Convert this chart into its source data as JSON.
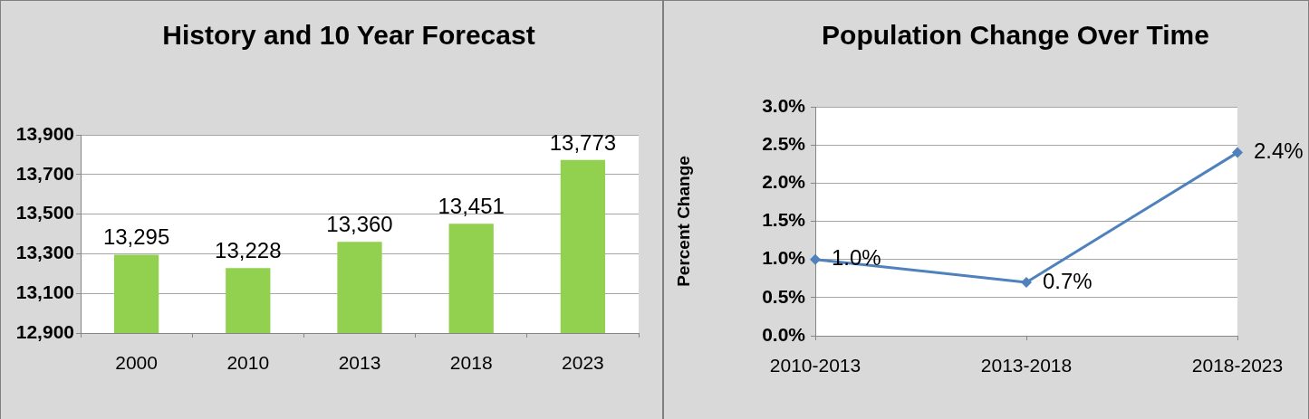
{
  "chart_data": [
    {
      "type": "bar",
      "title": "History and 10 Year Forecast",
      "categories": [
        "2000",
        "2010",
        "2013",
        "2018",
        "2023"
      ],
      "values": [
        13295,
        13228,
        13360,
        13451,
        13773
      ],
      "color": "#92d050",
      "value_labels": [
        "13,295",
        "13,228",
        "13,360",
        "13,451",
        "13,773"
      ],
      "ylim": [
        12900,
        13900
      ],
      "yticks": [
        {
          "value": 12900,
          "label": "12,900"
        },
        {
          "value": 13100,
          "label": "13,100"
        },
        {
          "value": 13300,
          "label": "13,300"
        },
        {
          "value": 13500,
          "label": "13,500"
        },
        {
          "value": 13700,
          "label": "13,700"
        },
        {
          "value": 13900,
          "label": "13,900"
        }
      ],
      "grid": "y"
    },
    {
      "type": "line",
      "title": "Population Change Over Time",
      "ylabel": "Percent Change",
      "categories": [
        "2010-2013",
        "2013-2018",
        "2018-2023"
      ],
      "values": [
        1.0,
        0.7,
        2.4
      ],
      "color": "#4f81bd",
      "value_labels": [
        "1.0%",
        "0.7%",
        "2.4%"
      ],
      "ylim": [
        0,
        3
      ],
      "yticks": [
        {
          "value": 0,
          "label": "0.0%"
        },
        {
          "value": 0.5,
          "label": "0.5%"
        },
        {
          "value": 1,
          "label": "1.0%"
        },
        {
          "value": 1.5,
          "label": "1.5%"
        },
        {
          "value": 2,
          "label": "2.0%"
        },
        {
          "value": 2.5,
          "label": "2.5%"
        },
        {
          "value": 3,
          "label": "3.0%"
        }
      ],
      "grid": "y",
      "marker": "diamond",
      "line_style": "solid"
    }
  ]
}
